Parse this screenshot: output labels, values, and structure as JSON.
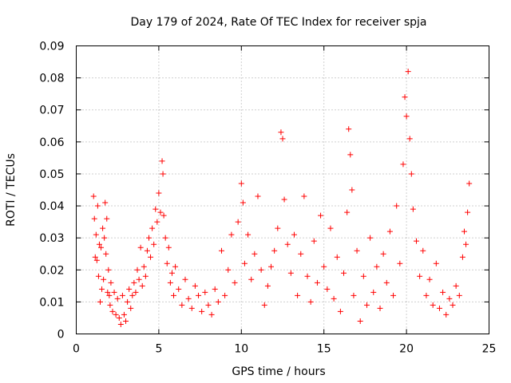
{
  "chart_data": {
    "type": "scatter",
    "title": "Day 179 of 2024, Rate Of TEC Index for receiver spja",
    "xlabel": "GPS time / hours",
    "ylabel": "ROTI / TECUs",
    "xlim": [
      0,
      25
    ],
    "ylim": [
      0,
      0.09
    ],
    "x_ticks": [
      0,
      5,
      10,
      15,
      20,
      25
    ],
    "x_tick_labels": [
      "0",
      "5",
      "10",
      "15",
      "20",
      "25"
    ],
    "y_ticks": [
      0,
      0.01,
      0.02,
      0.03,
      0.04,
      0.05,
      0.06,
      0.07,
      0.08,
      0.09
    ],
    "y_tick_labels": [
      "0",
      "0.01",
      "0.02",
      "0.03",
      "0.04",
      "0.05",
      "0.06",
      "0.07",
      "0.08",
      "0.09"
    ],
    "grid": true,
    "marker": "plus",
    "color": "#ff0000",
    "series": [
      {
        "name": "ROTI",
        "x": [
          1.05,
          1.1,
          1.15,
          1.2,
          1.25,
          1.3,
          1.35,
          1.4,
          1.45,
          1.5,
          1.55,
          1.6,
          1.65,
          1.7,
          1.75,
          1.8,
          1.85,
          1.9,
          1.95,
          2.0,
          2.05,
          2.1,
          2.2,
          2.3,
          2.4,
          2.5,
          2.6,
          2.7,
          2.8,
          2.9,
          3.0,
          3.1,
          3.2,
          3.3,
          3.4,
          3.5,
          3.6,
          3.7,
          3.8,
          3.9,
          4.0,
          4.1,
          4.2,
          4.3,
          4.4,
          4.5,
          4.6,
          4.7,
          4.8,
          4.9,
          5.0,
          5.1,
          5.2,
          5.25,
          5.3,
          5.4,
          5.5,
          5.6,
          5.7,
          5.8,
          5.9,
          6.0,
          6.2,
          6.4,
          6.6,
          6.8,
          7.0,
          7.2,
          7.4,
          7.6,
          7.8,
          8.0,
          8.2,
          8.4,
          8.6,
          8.8,
          9.0,
          9.2,
          9.4,
          9.6,
          9.8,
          10.0,
          10.1,
          10.2,
          10.4,
          10.6,
          10.8,
          11.0,
          11.2,
          11.4,
          11.6,
          11.8,
          12.0,
          12.2,
          12.4,
          12.5,
          12.6,
          12.8,
          13.0,
          13.2,
          13.4,
          13.6,
          13.8,
          14.0,
          14.2,
          14.4,
          14.6,
          14.8,
          15.0,
          15.2,
          15.4,
          15.6,
          15.8,
          16.0,
          16.2,
          16.4,
          16.5,
          16.6,
          16.7,
          16.8,
          17.0,
          17.2,
          17.4,
          17.6,
          17.8,
          18.0,
          18.2,
          18.4,
          18.6,
          18.8,
          19.0,
          19.2,
          19.4,
          19.6,
          19.8,
          19.9,
          20.0,
          20.1,
          20.2,
          20.3,
          20.4,
          20.6,
          20.8,
          21.0,
          21.2,
          21.4,
          21.6,
          21.8,
          22.0,
          22.2,
          22.4,
          22.6,
          22.8,
          23.0,
          23.2,
          23.4,
          23.5,
          23.6,
          23.7,
          23.8
        ],
        "y": [
          0.043,
          0.036,
          0.024,
          0.031,
          0.023,
          0.04,
          0.018,
          0.028,
          0.01,
          0.027,
          0.014,
          0.033,
          0.017,
          0.03,
          0.041,
          0.025,
          0.036,
          0.013,
          0.02,
          0.012,
          0.009,
          0.016,
          0.007,
          0.013,
          0.006,
          0.011,
          0.005,
          0.003,
          0.012,
          0.006,
          0.004,
          0.01,
          0.014,
          0.008,
          0.012,
          0.016,
          0.013,
          0.02,
          0.017,
          0.027,
          0.015,
          0.021,
          0.018,
          0.026,
          0.03,
          0.024,
          0.033,
          0.028,
          0.039,
          0.035,
          0.044,
          0.038,
          0.054,
          0.05,
          0.037,
          0.03,
          0.022,
          0.027,
          0.016,
          0.019,
          0.012,
          0.021,
          0.014,
          0.009,
          0.017,
          0.011,
          0.008,
          0.015,
          0.012,
          0.007,
          0.013,
          0.009,
          0.006,
          0.014,
          0.01,
          0.026,
          0.012,
          0.02,
          0.031,
          0.016,
          0.035,
          0.047,
          0.041,
          0.022,
          0.031,
          0.017,
          0.025,
          0.043,
          0.02,
          0.009,
          0.015,
          0.021,
          0.026,
          0.033,
          0.063,
          0.061,
          0.042,
          0.028,
          0.019,
          0.031,
          0.012,
          0.025,
          0.043,
          0.018,
          0.01,
          0.029,
          0.016,
          0.037,
          0.021,
          0.014,
          0.033,
          0.011,
          0.024,
          0.007,
          0.019,
          0.038,
          0.064,
          0.056,
          0.045,
          0.012,
          0.026,
          0.004,
          0.018,
          0.009,
          0.03,
          0.013,
          0.021,
          0.008,
          0.025,
          0.016,
          0.032,
          0.012,
          0.04,
          0.022,
          0.053,
          0.074,
          0.068,
          0.082,
          0.061,
          0.05,
          0.039,
          0.029,
          0.018,
          0.026,
          0.012,
          0.017,
          0.009,
          0.022,
          0.008,
          0.013,
          0.006,
          0.011,
          0.009,
          0.015,
          0.012,
          0.024,
          0.032,
          0.028,
          0.038,
          0.047
        ]
      }
    ]
  }
}
